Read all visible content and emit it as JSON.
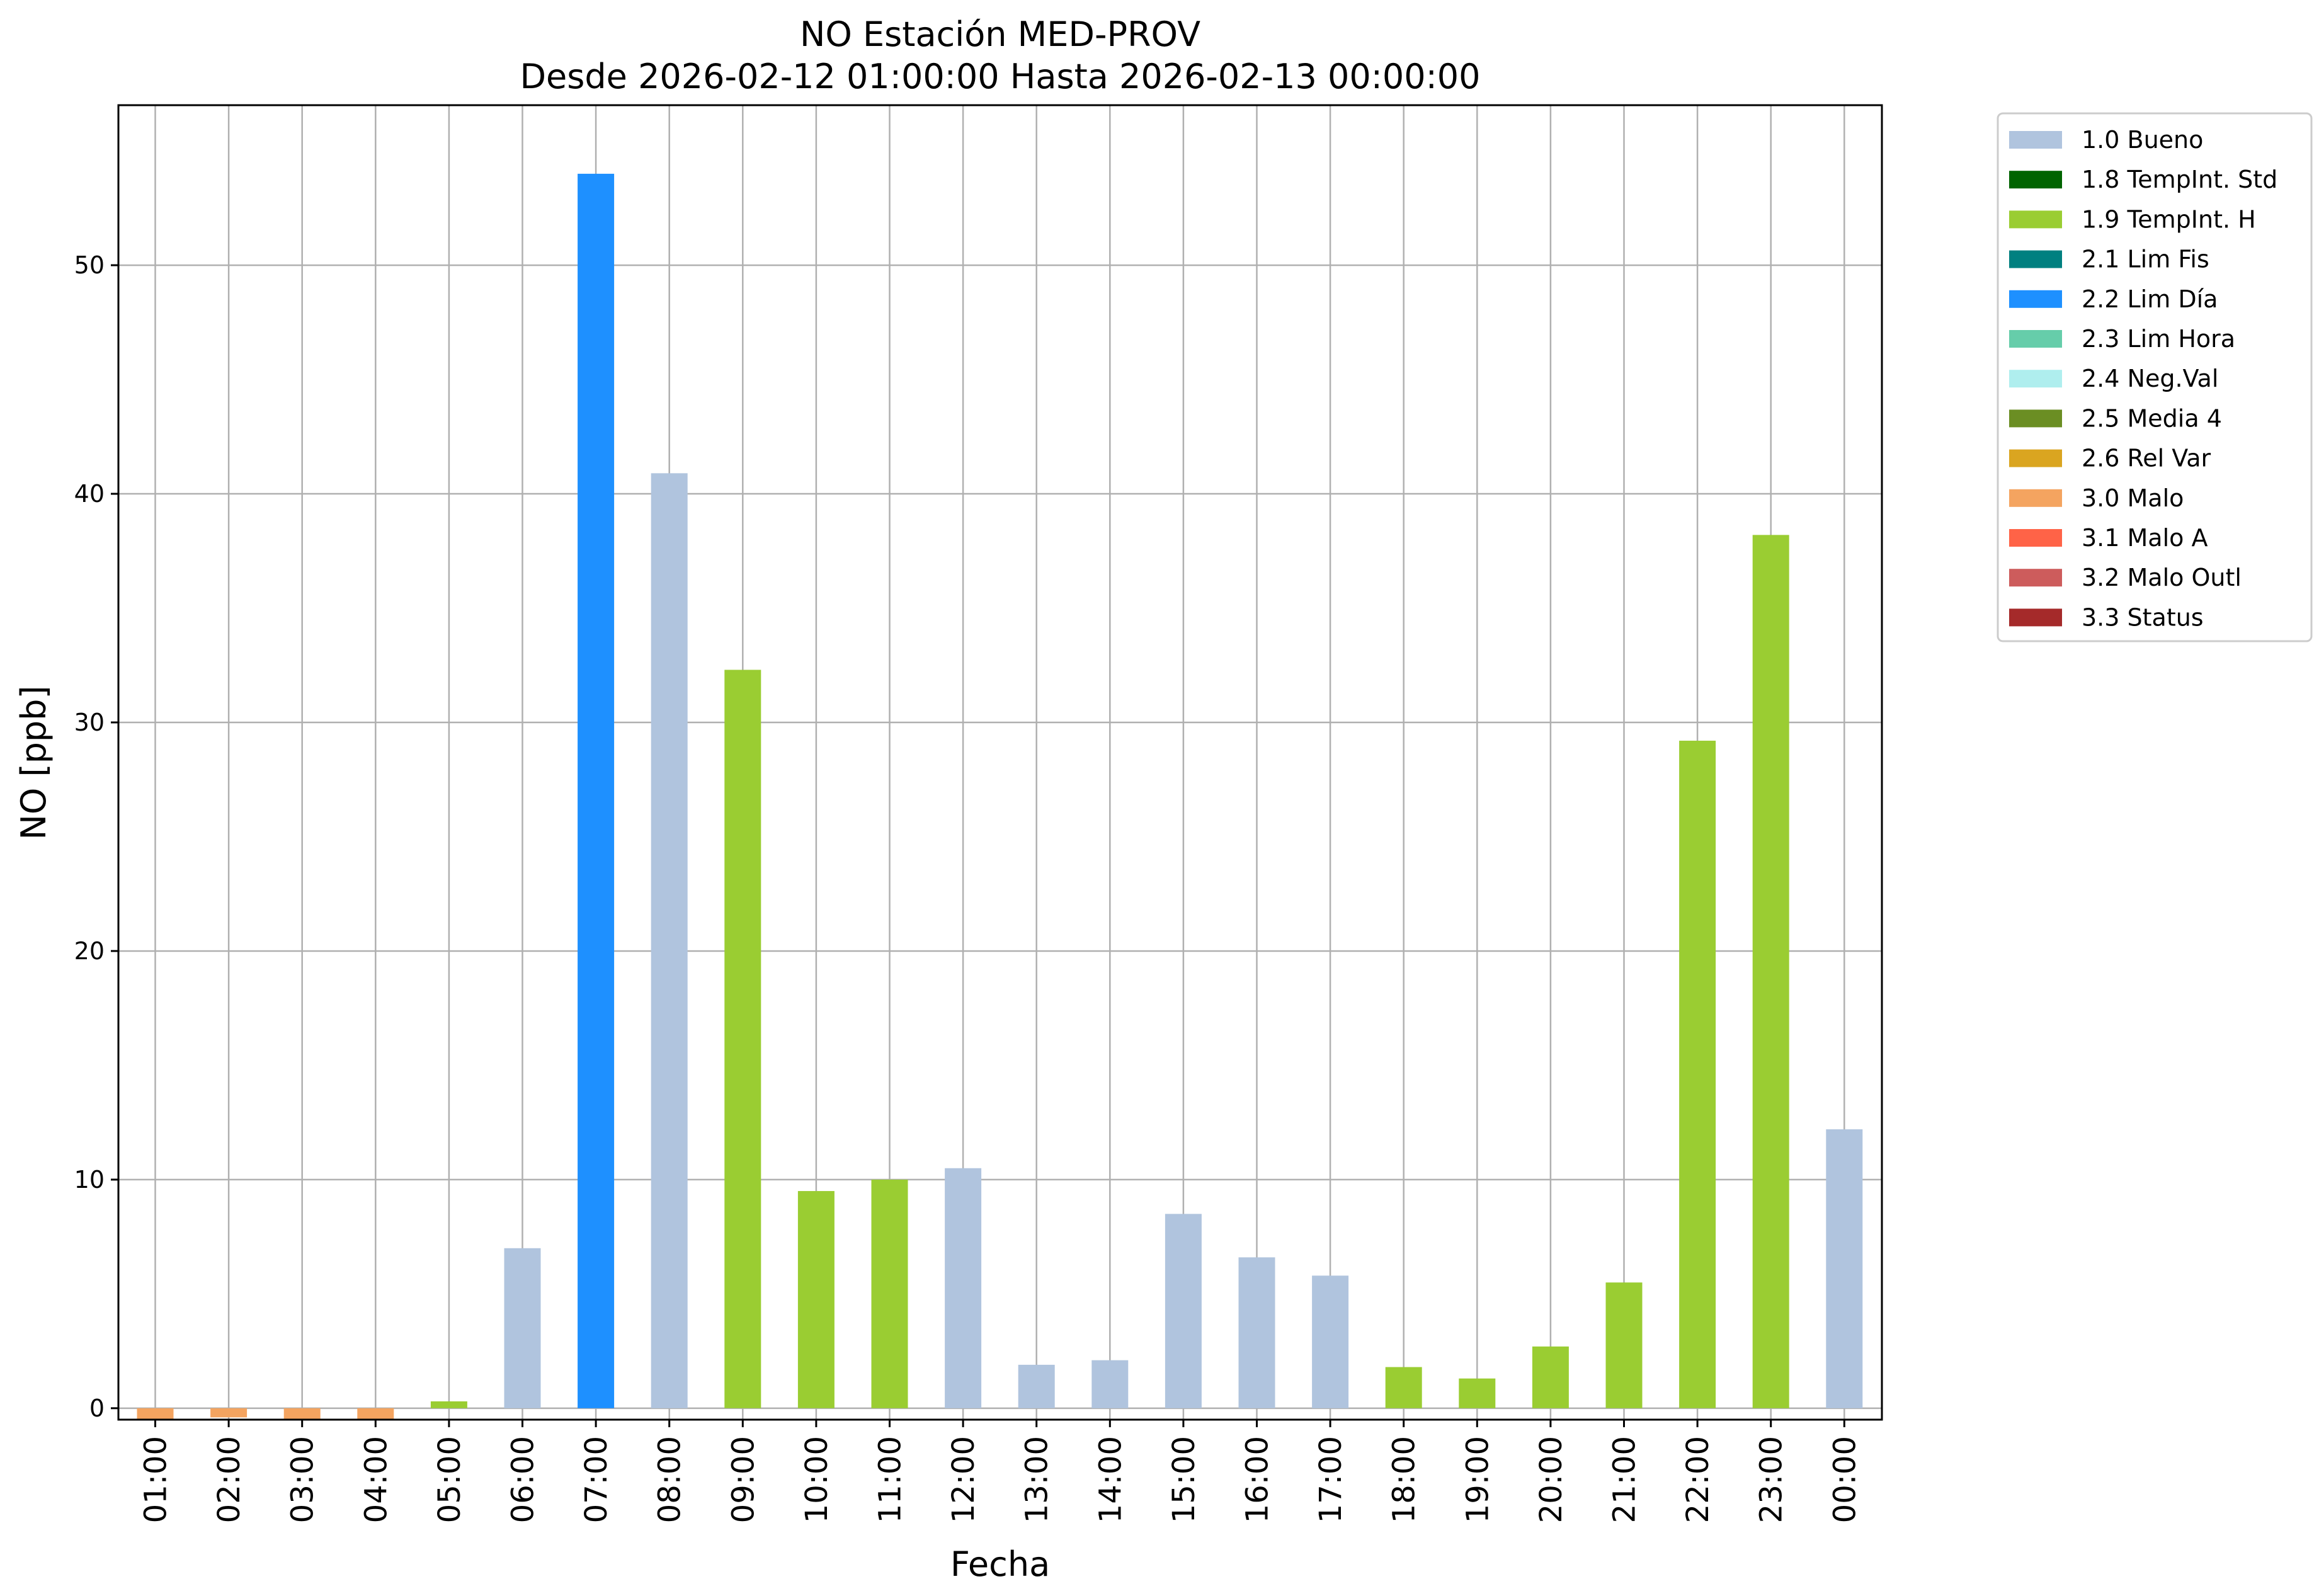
{
  "chart_data": {
    "type": "bar",
    "title": "NO Estación MED-PROV",
    "subtitle": "Desde 2026-02-12 01:00:00 Hasta 2026-02-13 00:00:00",
    "xlabel": "Fecha",
    "ylabel": "NO [ppb]",
    "ylim": [
      -0.5,
      57
    ],
    "yticks": [
      0,
      10,
      20,
      30,
      40,
      50
    ],
    "grid": true,
    "legend_position": "outside-top-right",
    "categories": [
      "01:00",
      "02:00",
      "03:00",
      "04:00",
      "05:00",
      "06:00",
      "07:00",
      "08:00",
      "09:00",
      "10:00",
      "11:00",
      "12:00",
      "13:00",
      "14:00",
      "15:00",
      "16:00",
      "17:00",
      "18:00",
      "19:00",
      "20:00",
      "21:00",
      "22:00",
      "23:00",
      "00:00"
    ],
    "values": [
      -0.5,
      -0.4,
      -0.5,
      -0.5,
      0.3,
      7.0,
      54.0,
      40.9,
      32.3,
      9.5,
      10.0,
      10.5,
      1.9,
      2.1,
      8.5,
      6.6,
      5.8,
      1.8,
      1.3,
      2.7,
      5.5,
      29.2,
      38.2,
      12.2
    ],
    "flags": [
      "3.0 Malo",
      "3.0 Malo",
      "3.0 Malo",
      "3.0 Malo",
      "1.9 TempInt. H",
      "1.0 Bueno",
      "2.2 Lim Día",
      "1.0 Bueno",
      "1.9 TempInt. H",
      "1.9 TempInt. H",
      "1.9 TempInt. H",
      "1.0 Bueno",
      "1.0 Bueno",
      "1.0 Bueno",
      "1.0 Bueno",
      "1.0 Bueno",
      "1.0 Bueno",
      "1.9 TempInt. H",
      "1.9 TempInt. H",
      "1.9 TempInt. H",
      "1.9 TempInt. H",
      "1.9 TempInt. H",
      "1.9 TempInt. H",
      "1.0 Bueno"
    ],
    "legend": [
      {
        "label": "1.0 Bueno",
        "color": "#b0c4de"
      },
      {
        "label": "1.8 TempInt. Std",
        "color": "#006400"
      },
      {
        "label": "1.9 TempInt. H",
        "color": "#9acd32"
      },
      {
        "label": "2.1 Lim Fis",
        "color": "#008080"
      },
      {
        "label": "2.2 Lim Día",
        "color": "#1e90ff"
      },
      {
        "label": "2.3 Lim Hora",
        "color": "#66cdaa"
      },
      {
        "label": "2.4 Neg.Val",
        "color": "#afeeee"
      },
      {
        "label": "2.5 Media 4",
        "color": "#6b8e23"
      },
      {
        "label": "2.6 Rel Var",
        "color": "#daa520"
      },
      {
        "label": "3.0 Malo",
        "color": "#f4a460"
      },
      {
        "label": "3.1 Malo A",
        "color": "#ff6347"
      },
      {
        "label": "3.2 Malo Outl",
        "color": "#cd5c5c"
      },
      {
        "label": "3.3 Status",
        "color": "#a52a2a"
      }
    ]
  },
  "colors": {
    "grid": "#b0b0b0",
    "axes": "#000000",
    "legend_border": "#cccccc"
  }
}
